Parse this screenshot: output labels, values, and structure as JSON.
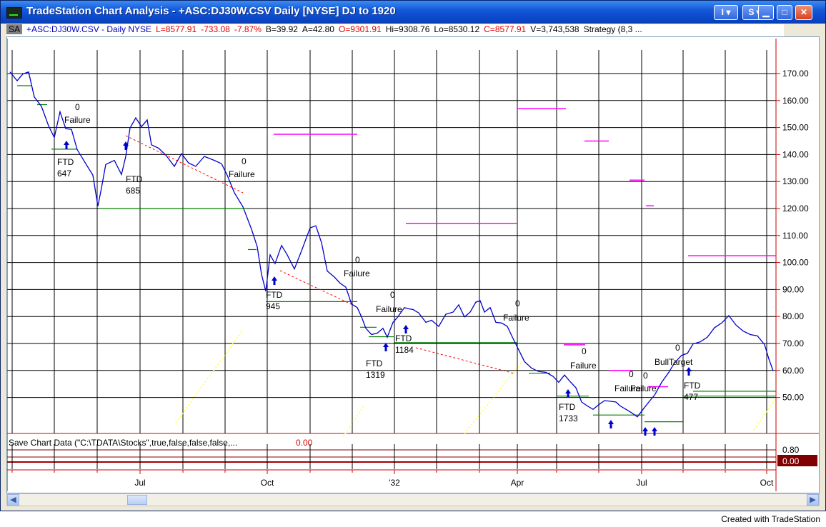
{
  "window": {
    "title": "TradeStation Chart Analysis - +ASC:DJ30W.CSV  Daily  [NYSE] DJ to 1920",
    "s_button": "S",
    "i_button": "I"
  },
  "status": {
    "badge": "SA",
    "symbol": "+ASC:DJ30W.CSV - Daily  NYSE",
    "last": "L=8577.91",
    "net": "-733.08",
    "pct": "-7.87%",
    "bid": "B=39.92",
    "ask": "A=42.80",
    "open": "O=9301.91",
    "high": "Hi=9308.76",
    "low": "Lo=8530.12",
    "close": "C=8577.91",
    "volume": "V=3,743,538",
    "strategy": "Strategy (8,3 ..."
  },
  "price_axis": [
    "170.00",
    "160.00",
    "150.00",
    "140.00",
    "130.00",
    "120.00",
    "110.00",
    "100.00",
    "90.00",
    "80.00",
    "70.00",
    "60.00",
    "50.00"
  ],
  "time_axis": [
    "Jul",
    "Oct",
    "'32",
    "Apr",
    "Jul",
    "Oct"
  ],
  "indicator": {
    "label": "Save Chart Data (\"C:\\TDATA\\Stocks\",true,false,false,false,...",
    "value": "0.00",
    "axis_top": "0.80",
    "axis_value": "0.00"
  },
  "annotations": {
    "ftd_label": "FTD",
    "ftd_numbers": [
      "647",
      "685",
      "945",
      "1319",
      "1184",
      "1733",
      "477"
    ],
    "zero": "0",
    "failure": "Failure",
    "bull_target": "BullTarget"
  },
  "footer": "Created with TradeStation",
  "colors": {
    "price_line": "#0000cc",
    "grid": "#000000",
    "support": "#008000",
    "target": "#ff00ff",
    "trend": "#ff0000",
    "diag": "#ffff66",
    "axis_red": "#d00000"
  }
}
